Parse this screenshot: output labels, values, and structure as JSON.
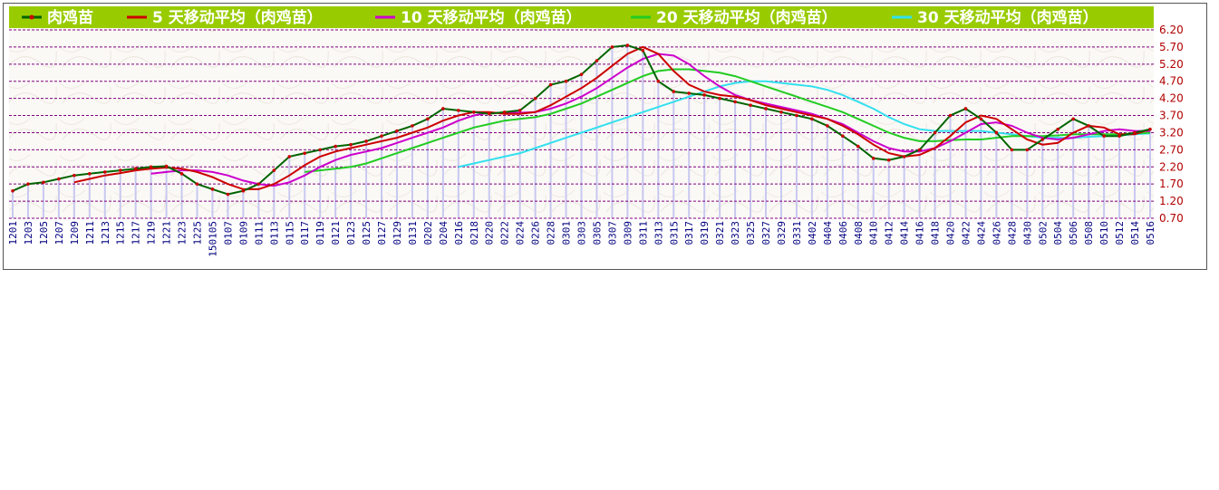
{
  "chart_data": {
    "type": "line",
    "legend_placement": "top",
    "grid": true,
    "ylim": [
      0.7,
      6.2
    ],
    "yticks": [
      "6.20",
      "5.70",
      "5.20",
      "4.70",
      "4.20",
      "3.70",
      "3.20",
      "2.70",
      "2.20",
      "1.70",
      "1.20",
      "0.70"
    ],
    "x_tick_labels": [
      "1201",
      "1203",
      "1205",
      "1207",
      "1209",
      "1211",
      "1213",
      "1215",
      "1217",
      "1219",
      "1221",
      "1223",
      "1225",
      "150105",
      "0107",
      "0109",
      "0111",
      "0113",
      "0115",
      "0117",
      "0119",
      "0121",
      "0123",
      "0125",
      "0127",
      "0129",
      "0131",
      "0202",
      "0204",
      "0216",
      "0218",
      "0220",
      "0222",
      "0224",
      "0226",
      "0228",
      "0301",
      "0303",
      "0305",
      "0307",
      "0309",
      "0311",
      "0313",
      "0315",
      "0317",
      "0319",
      "0321",
      "0323",
      "0325",
      "0327",
      "0329",
      "0331",
      "0402",
      "0404",
      "0406",
      "0408",
      "0410",
      "0412",
      "0414",
      "0416",
      "0418",
      "0420",
      "0422",
      "0424",
      "0426",
      "0428",
      "0430",
      "0502",
      "0504",
      "0506",
      "0508",
      "0510",
      "0512",
      "0514",
      "0516"
    ],
    "series": [
      {
        "name": "肉鸡苗",
        "color": "#006400",
        "marker_color": "#cc0000",
        "values": [
          1.5,
          1.7,
          1.75,
          1.85,
          1.95,
          2.0,
          2.05,
          2.1,
          2.15,
          2.2,
          2.22,
          2.0,
          1.7,
          1.55,
          1.4,
          1.5,
          1.7,
          2.1,
          2.5,
          2.6,
          2.7,
          2.8,
          2.85,
          2.95,
          3.1,
          3.25,
          3.4,
          3.6,
          3.9,
          3.85,
          3.8,
          3.75,
          3.8,
          3.85,
          4.2,
          4.6,
          4.7,
          4.9,
          5.3,
          5.7,
          5.75,
          5.6,
          4.7,
          4.4,
          4.35,
          4.3,
          4.2,
          4.1,
          4.0,
          3.9,
          3.8,
          3.7,
          3.6,
          3.4,
          3.1,
          2.8,
          2.45,
          2.4,
          2.5,
          2.7,
          3.2,
          3.7,
          3.9,
          3.6,
          3.2,
          2.7,
          2.7,
          3.0,
          3.3,
          3.6,
          3.4,
          3.1,
          3.1,
          3.2,
          3.3
        ]
      },
      {
        "name": "5 天移动平均（肉鸡苗）",
        "color": "#cc0000",
        "values": [
          null,
          null,
          null,
          null,
          1.75,
          1.85,
          1.95,
          2.02,
          2.1,
          2.15,
          2.18,
          2.15,
          2.05,
          1.9,
          1.7,
          1.55,
          1.55,
          1.7,
          1.95,
          2.25,
          2.5,
          2.65,
          2.75,
          2.85,
          2.95,
          3.05,
          3.2,
          3.35,
          3.55,
          3.7,
          3.8,
          3.8,
          3.75,
          3.75,
          3.8,
          4.0,
          4.25,
          4.5,
          4.8,
          5.15,
          5.5,
          5.7,
          5.5,
          5.0,
          4.6,
          4.4,
          4.3,
          4.25,
          4.15,
          4.0,
          3.9,
          3.8,
          3.7,
          3.6,
          3.4,
          3.15,
          2.85,
          2.6,
          2.5,
          2.55,
          2.75,
          3.1,
          3.5,
          3.7,
          3.6,
          3.3,
          3.0,
          2.85,
          2.9,
          3.2,
          3.4,
          3.35,
          3.15,
          3.15,
          3.3
        ]
      },
      {
        "name": "10 天移动平均（肉鸡苗）",
        "color": "#cc00cc",
        "values": [
          null,
          null,
          null,
          null,
          null,
          null,
          null,
          null,
          null,
          2.0,
          2.05,
          2.1,
          2.1,
          2.05,
          1.95,
          1.8,
          1.7,
          1.65,
          1.75,
          1.95,
          2.2,
          2.4,
          2.55,
          2.65,
          2.75,
          2.9,
          3.05,
          3.2,
          3.35,
          3.55,
          3.7,
          3.78,
          3.78,
          3.78,
          3.8,
          3.9,
          4.05,
          4.25,
          4.5,
          4.8,
          5.1,
          5.35,
          5.5,
          5.45,
          5.2,
          4.85,
          4.55,
          4.3,
          4.15,
          4.05,
          3.95,
          3.85,
          3.75,
          3.6,
          3.45,
          3.2,
          2.95,
          2.75,
          2.65,
          2.65,
          2.75,
          2.95,
          3.2,
          3.45,
          3.5,
          3.4,
          3.2,
          3.05,
          3.0,
          3.05,
          3.15,
          3.25,
          3.3,
          3.25,
          3.25
        ]
      },
      {
        "name": "20 天移动平均（肉鸡苗）",
        "color": "#22cc22",
        "values": [
          null,
          null,
          null,
          null,
          null,
          null,
          null,
          null,
          null,
          null,
          null,
          null,
          null,
          null,
          null,
          null,
          null,
          null,
          null,
          2.05,
          2.1,
          2.15,
          2.2,
          2.3,
          2.45,
          2.6,
          2.75,
          2.9,
          3.05,
          3.2,
          3.35,
          3.45,
          3.55,
          3.6,
          3.65,
          3.75,
          3.9,
          4.05,
          4.25,
          4.45,
          4.65,
          4.85,
          5.0,
          5.05,
          5.05,
          5.0,
          4.95,
          4.85,
          4.7,
          4.55,
          4.4,
          4.25,
          4.1,
          3.95,
          3.8,
          3.6,
          3.4,
          3.2,
          3.05,
          2.95,
          2.95,
          2.98,
          3.0,
          3.0,
          3.05,
          3.1,
          3.1,
          3.1,
          3.12,
          3.15,
          3.15,
          3.15,
          3.15,
          3.18,
          3.2
        ]
      },
      {
        "name": "30 天移动平均（肉鸡苗）",
        "color": "#33e0ee",
        "values": [
          null,
          null,
          null,
          null,
          null,
          null,
          null,
          null,
          null,
          null,
          null,
          null,
          null,
          null,
          null,
          null,
          null,
          null,
          null,
          null,
          null,
          null,
          null,
          null,
          null,
          null,
          null,
          null,
          null,
          2.2,
          2.3,
          2.4,
          2.5,
          2.6,
          2.75,
          2.9,
          3.05,
          3.2,
          3.35,
          3.5,
          3.65,
          3.8,
          3.95,
          4.1,
          4.25,
          4.4,
          4.55,
          4.65,
          4.7,
          4.7,
          4.65,
          4.6,
          4.55,
          4.45,
          4.3,
          4.1,
          3.9,
          3.65,
          3.45,
          3.3,
          3.25,
          3.25,
          3.25,
          3.25,
          3.2,
          3.15,
          3.1,
          3.05,
          3.05,
          3.05,
          3.08,
          3.1,
          3.12,
          3.15,
          3.18
        ]
      }
    ],
    "background_bars": {
      "color": "#c8c8f0"
    }
  }
}
